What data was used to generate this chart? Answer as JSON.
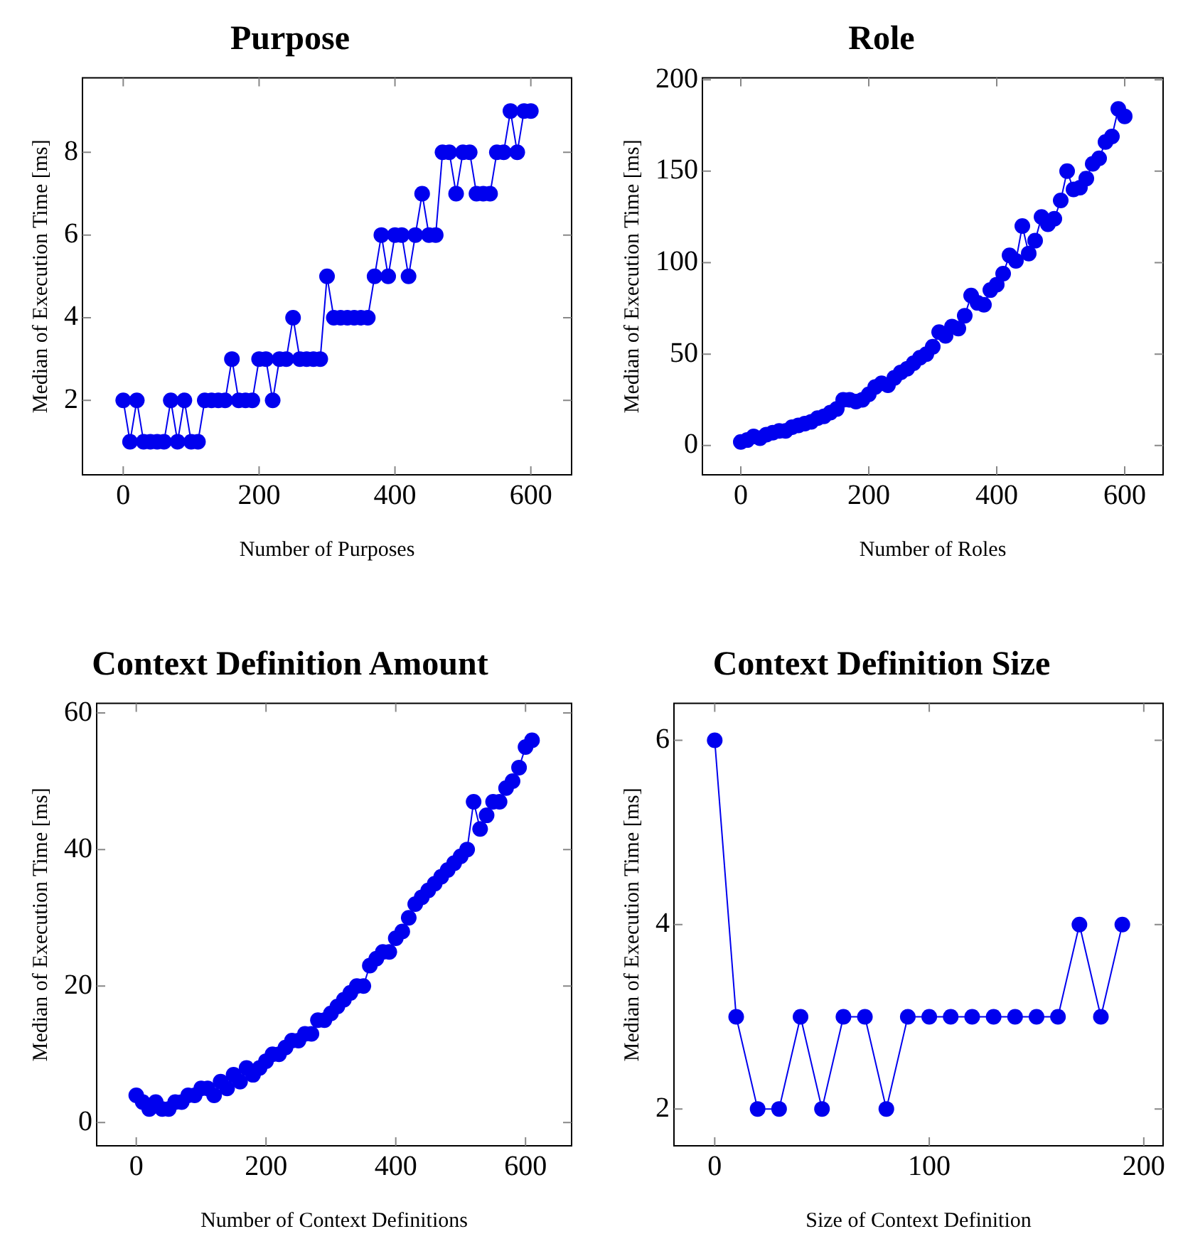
{
  "chart_data": [
    {
      "type": "line",
      "title": "Purpose",
      "xlabel": "Number of Purposes",
      "ylabel": "Median of Execution Time [ms]",
      "marker": "circle",
      "line_style": "solid",
      "grid": false,
      "legend": false,
      "xlim": [
        -60,
        660
      ],
      "xticks": [
        0,
        200,
        400,
        600
      ],
      "ylim": [
        0.2,
        9.8
      ],
      "yticks": [
        2,
        4,
        6,
        8
      ],
      "x": [
        0,
        10,
        20,
        30,
        40,
        50,
        60,
        70,
        80,
        90,
        100,
        110,
        120,
        130,
        140,
        150,
        160,
        170,
        180,
        190,
        200,
        210,
        220,
        230,
        240,
        250,
        260,
        270,
        280,
        290,
        300,
        310,
        320,
        330,
        340,
        350,
        360,
        370,
        380,
        390,
        400,
        410,
        420,
        430,
        440,
        450,
        460,
        470,
        480,
        490,
        500,
        510,
        520,
        530,
        540,
        550,
        560,
        570,
        580,
        590,
        600
      ],
      "series": [
        {
          "color": "#0000ee",
          "values": [
            2,
            1,
            2,
            1,
            1,
            1,
            1,
            2,
            1,
            2,
            1,
            1,
            2,
            2,
            2,
            2,
            3,
            2,
            2,
            2,
            3,
            3,
            2,
            3,
            3,
            4,
            3,
            3,
            3,
            3,
            5,
            4,
            4,
            4,
            4,
            4,
            4,
            5,
            6,
            5,
            6,
            6,
            5,
            6,
            7,
            6,
            6,
            8,
            8,
            7,
            8,
            8,
            7,
            7,
            7,
            8,
            8,
            9,
            8,
            9,
            9
          ]
        }
      ]
    },
    {
      "type": "line",
      "title": "Role",
      "xlabel": "Number of Roles",
      "ylabel": "Median of Execution Time [ms]",
      "marker": "circle",
      "line_style": "solid",
      "grid": false,
      "legend": false,
      "xlim": [
        -60,
        660
      ],
      "xticks": [
        0,
        200,
        400,
        600
      ],
      "ylim": [
        -16,
        201
      ],
      "yticks": [
        0,
        50,
        100,
        150,
        200
      ],
      "x": [
        0,
        10,
        20,
        30,
        40,
        50,
        60,
        70,
        80,
        90,
        100,
        110,
        120,
        130,
        140,
        150,
        160,
        170,
        180,
        190,
        200,
        210,
        220,
        230,
        240,
        250,
        260,
        270,
        280,
        290,
        300,
        310,
        320,
        330,
        340,
        350,
        360,
        370,
        380,
        390,
        400,
        410,
        420,
        430,
        440,
        450,
        460,
        470,
        480,
        490,
        500,
        510,
        520,
        530,
        540,
        550,
        560,
        570,
        580,
        590,
        600
      ],
      "series": [
        {
          "color": "#0000ee",
          "values": [
            2,
            3,
            5,
            4,
            6,
            7,
            8,
            8,
            10,
            11,
            12,
            13,
            15,
            16,
            18,
            20,
            25,
            25,
            24,
            25,
            28,
            32,
            34,
            33,
            37,
            40,
            42,
            45,
            48,
            50,
            54,
            62,
            60,
            65,
            64,
            71,
            82,
            78,
            77,
            85,
            88,
            94,
            104,
            101,
            120,
            105,
            112,
            125,
            121,
            124,
            134,
            150,
            140,
            141,
            146,
            154,
            157,
            166,
            169,
            184,
            180
          ]
        }
      ]
    },
    {
      "type": "line",
      "title": "Context Definition Amount",
      "xlabel": "Number of Context Definitions",
      "ylabel": "Median of Execution Time [ms]",
      "marker": "circle",
      "line_style": "solid",
      "grid": false,
      "legend": false,
      "xlim": [
        -61,
        671
      ],
      "xticks": [
        0,
        200,
        400,
        600
      ],
      "ylim": [
        -3.4,
        61.4
      ],
      "yticks": [
        0,
        20,
        40,
        60
      ],
      "x": [
        0,
        10,
        20,
        30,
        40,
        50,
        60,
        70,
        80,
        90,
        100,
        110,
        120,
        130,
        140,
        150,
        160,
        170,
        180,
        190,
        200,
        210,
        220,
        230,
        240,
        250,
        260,
        270,
        280,
        290,
        300,
        310,
        320,
        330,
        340,
        350,
        360,
        370,
        380,
        390,
        400,
        410,
        420,
        430,
        440,
        450,
        460,
        470,
        480,
        490,
        500,
        510,
        520,
        530,
        540,
        550,
        560,
        570,
        580,
        590,
        600,
        610
      ],
      "series": [
        {
          "color": "#0000ee",
          "values": [
            4,
            3,
            2,
            3,
            2,
            2,
            3,
            3,
            4,
            4,
            5,
            5,
            4,
            6,
            5,
            7,
            6,
            8,
            7,
            8,
            9,
            10,
            10,
            11,
            12,
            12,
            13,
            13,
            15,
            15,
            16,
            17,
            18,
            19,
            20,
            20,
            23,
            24,
            25,
            25,
            27,
            28,
            30,
            32,
            33,
            34,
            35,
            36,
            37,
            38,
            39,
            40,
            47,
            43,
            45,
            47,
            47,
            49,
            50,
            52,
            55,
            56
          ]
        }
      ]
    },
    {
      "type": "line",
      "title": "Context Definition Size",
      "xlabel": "Size of Context Definition",
      "ylabel": "Median of Execution Time [ms]",
      "marker": "circle",
      "line_style": "solid",
      "grid": false,
      "legend": false,
      "xlim": [
        -19,
        209
      ],
      "xticks": [
        0,
        100,
        200
      ],
      "ylim": [
        1.6,
        6.4
      ],
      "yticks": [
        2,
        4,
        6
      ],
      "x": [
        0,
        10,
        20,
        30,
        40,
        50,
        60,
        70,
        80,
        90,
        100,
        110,
        120,
        130,
        140,
        150,
        160,
        170,
        180,
        190
      ],
      "series": [
        {
          "color": "#0000ee",
          "values": [
            6,
            3,
            2,
            2,
            3,
            2,
            3,
            3,
            2,
            3,
            3,
            3,
            3,
            3,
            3,
            3,
            3,
            4,
            3,
            4
          ]
        }
      ]
    }
  ]
}
